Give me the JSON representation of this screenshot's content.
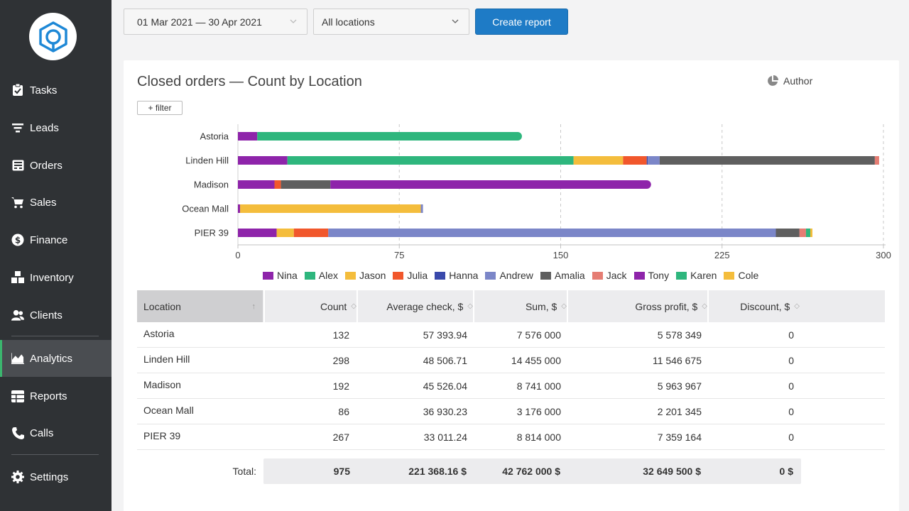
{
  "nav": {
    "items": [
      {
        "label": "Tasks",
        "icon": "clipboard-icon"
      },
      {
        "label": "Leads",
        "icon": "filter-icon"
      },
      {
        "label": "Orders",
        "icon": "inbox-icon"
      },
      {
        "label": "Sales",
        "icon": "cart-icon"
      },
      {
        "label": "Finance",
        "icon": "dollar-icon"
      },
      {
        "label": "Inventory",
        "icon": "boxes-icon"
      },
      {
        "label": "Clients",
        "icon": "users-icon"
      },
      {
        "label": "Analytics",
        "icon": "chart-area-icon"
      },
      {
        "label": "Reports",
        "icon": "table-icon"
      },
      {
        "label": "Calls",
        "icon": "phone-icon"
      },
      {
        "label": "Settings",
        "icon": "gear-icon"
      }
    ],
    "active": "Analytics"
  },
  "toolbar": {
    "date_range": "01 Mar 2021 — 30 Apr 2021",
    "location": "All locations",
    "create_label": "Create report"
  },
  "card": {
    "title": "Closed orders — Count by Location",
    "author_label": "Author",
    "filter_label": "+ filter"
  },
  "chart_data": {
    "type": "bar",
    "orientation": "horizontal",
    "stacked": true,
    "categories": [
      "Astoria",
      "Linden Hill",
      "Madison",
      "Ocean Mall",
      "PIER 39"
    ],
    "xlim": [
      0,
      300
    ],
    "xticks": [
      0,
      75,
      150,
      225,
      300
    ],
    "grid": true,
    "legend_position": "bottom",
    "series": [
      {
        "name": "Nina",
        "color": "#8e24aa",
        "values": [
          9,
          23,
          17,
          1,
          18
        ]
      },
      {
        "name": "Alex",
        "color": "#2eb67d",
        "values": [
          123,
          133,
          0,
          0,
          0
        ]
      },
      {
        "name": "Jason",
        "color": "#f4bd3c",
        "values": [
          0,
          23,
          0,
          84,
          8
        ]
      },
      {
        "name": "Julia",
        "color": "#f1572c",
        "values": [
          0,
          11,
          3,
          0,
          16
        ]
      },
      {
        "name": "Hanna",
        "color": "#3949ab",
        "values": [
          0,
          0.5,
          0,
          0,
          0
        ]
      },
      {
        "name": "Andrew",
        "color": "#7b86c8",
        "values": [
          0,
          5.5,
          0,
          1,
          208
        ]
      },
      {
        "name": "Amalia",
        "color": "#5f5f5f",
        "values": [
          0,
          100,
          23,
          0,
          11
        ]
      },
      {
        "name": "Jack",
        "color": "#e57d73",
        "values": [
          0,
          2,
          0,
          0,
          3
        ]
      },
      {
        "name": "Tony",
        "color": "#8e24aa",
        "values": [
          0,
          0,
          149,
          0,
          0
        ]
      },
      {
        "name": "Karen",
        "color": "#2eb67d",
        "values": [
          0,
          0,
          0,
          0,
          2
        ]
      },
      {
        "name": "Cole",
        "color": "#f4bd3c",
        "values": [
          0,
          0,
          0,
          0,
          1
        ]
      }
    ]
  },
  "table": {
    "headers": [
      "Location",
      "Count",
      "Average check, $",
      "Sum, $",
      "Gross profit, $",
      "Discount, $"
    ],
    "rows": [
      [
        "Astoria",
        "132",
        "57 393.94",
        "7 576 000",
        "5 578 349",
        "0"
      ],
      [
        "Linden Hill",
        "298",
        "48 506.71",
        "14 455 000",
        "11 546 675",
        "0"
      ],
      [
        "Madison",
        "192",
        "45 526.04",
        "8 741 000",
        "5 963 967",
        "0"
      ],
      [
        "Ocean Mall",
        "86",
        "36 930.23",
        "3 176 000",
        "2 201 345",
        "0"
      ],
      [
        "PIER 39",
        "267",
        "33 011.24",
        "8 814 000",
        "7 359 164",
        "0"
      ]
    ],
    "total_label": "Total:",
    "totals": [
      "975",
      "221 368.16 $",
      "42 762 000 $",
      "32 649 500 $",
      "0 $"
    ]
  }
}
